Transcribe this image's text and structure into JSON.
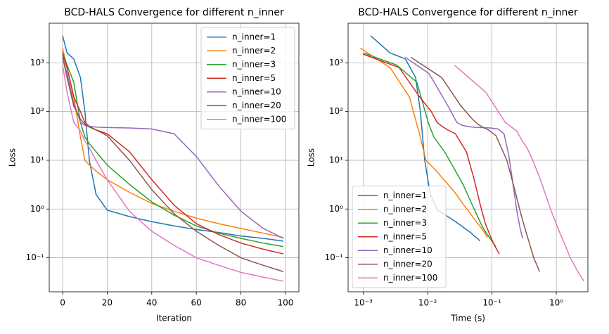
{
  "chart_data": [
    {
      "type": "line",
      "title": "BCD-HALS Convergence for different n_inner",
      "xlabel": "Iteration",
      "ylabel": "Loss",
      "xscale": "linear",
      "yscale": "log",
      "grid": true,
      "legend": "upper right",
      "xlim": [
        -6,
        106
      ],
      "xticks": [
        0,
        20,
        40,
        60,
        80,
        100
      ],
      "ylim": [
        0.02,
        6500
      ],
      "yticks": [
        {
          "value": 0.1,
          "label": "10⁻¹"
        },
        {
          "value": 1,
          "label": "10⁰"
        },
        {
          "value": 10,
          "label": "10¹"
        },
        {
          "value": 100,
          "label": "10²"
        },
        {
          "value": 1000,
          "label": "10³"
        }
      ],
      "x": [
        0,
        2,
        5,
        8,
        10,
        12,
        15,
        20,
        30,
        40,
        50,
        60,
        70,
        80,
        90,
        99
      ],
      "series": [
        {
          "name": "n_inner=1",
          "color": "#1f77b4",
          "values": [
            3600,
            1600,
            1200,
            500,
            100,
            10,
            2,
            0.95,
            0.7,
            0.55,
            0.45,
            0.38,
            0.33,
            0.28,
            0.25,
            0.22
          ]
        },
        {
          "name": "n_inner=2",
          "color": "#ff7f0e",
          "values": [
            2000,
            800,
            200,
            30,
            10,
            8,
            6,
            4,
            2.2,
            1.3,
            0.9,
            0.65,
            0.5,
            0.4,
            0.32,
            0.26
          ]
        },
        {
          "name": "n_inner=3",
          "color": "#2ca02c",
          "values": [
            1600,
            900,
            400,
            60,
            30,
            22,
            15,
            8,
            3.2,
            1.4,
            0.75,
            0.45,
            0.32,
            0.25,
            0.2,
            0.17
          ]
        },
        {
          "name": "n_inner=5",
          "color": "#d62728",
          "values": [
            1500,
            800,
            200,
            100,
            60,
            50,
            42,
            35,
            15,
            4,
            1.2,
            0.5,
            0.3,
            0.2,
            0.15,
            0.12
          ]
        },
        {
          "name": "n_inner=10",
          "color": "#9467bd",
          "values": [
            1300,
            600,
            150,
            60,
            52,
            50,
            48,
            47,
            46,
            44,
            35,
            12,
            3,
            0.9,
            0.4,
            0.25
          ]
        },
        {
          "name": "n_inner=20",
          "color": "#8c564b",
          "values": [
            1300,
            500,
            130,
            70,
            55,
            48,
            42,
            32,
            10,
            2.5,
            0.8,
            0.35,
            0.18,
            0.1,
            0.07,
            0.052
          ]
        },
        {
          "name": "n_inner=100",
          "color": "#e377c2",
          "values": [
            900,
            250,
            60,
            40,
            25,
            18,
            10,
            4,
            0.9,
            0.35,
            0.18,
            0.1,
            0.07,
            0.05,
            0.04,
            0.033
          ]
        }
      ]
    },
    {
      "type": "line",
      "title": "BCD-HALS Convergence for different n_inner",
      "xlabel": "Time (s)",
      "ylabel": "Loss",
      "xscale": "log",
      "yscale": "log",
      "grid": true,
      "legend": "lower left",
      "xlim": [
        0.00058,
        3.1
      ],
      "xticks": [
        {
          "value": 0.001,
          "label": "10⁻³"
        },
        {
          "value": 0.01,
          "label": "10⁻²"
        },
        {
          "value": 0.1,
          "label": "10⁻¹"
        },
        {
          "value": 1,
          "label": "10⁰"
        }
      ],
      "ylim": [
        0.02,
        6500
      ],
      "yticks": [
        {
          "value": 0.1,
          "label": "10⁻¹"
        },
        {
          "value": 1,
          "label": "10⁰"
        },
        {
          "value": 10,
          "label": "10¹"
        },
        {
          "value": 100,
          "label": "10²"
        },
        {
          "value": 1000,
          "label": "10³"
        }
      ],
      "series": [
        {
          "name": "n_inner=1",
          "color": "#1f77b4",
          "x": [
            0.0013,
            0.0026,
            0.0045,
            0.0065,
            0.0077,
            0.009,
            0.011,
            0.0142,
            0.0206,
            0.0271,
            0.0335,
            0.0399,
            0.0464,
            0.0528,
            0.0593,
            0.065
          ],
          "values": [
            3600,
            1600,
            1200,
            500,
            100,
            10,
            2,
            0.95,
            0.7,
            0.55,
            0.45,
            0.38,
            0.33,
            0.28,
            0.25,
            0.22
          ]
        },
        {
          "name": "n_inner=2",
          "color": "#ff7f0e",
          "x": [
            0.0009,
            0.0026,
            0.0052,
            0.0077,
            0.0094,
            0.0111,
            0.0137,
            0.0179,
            0.0264,
            0.0349,
            0.0434,
            0.0519,
            0.0604,
            0.0689,
            0.0774,
            0.085
          ],
          "values": [
            2000,
            800,
            200,
            30,
            10,
            8,
            6,
            4,
            2.2,
            1.3,
            0.9,
            0.65,
            0.5,
            0.4,
            0.32,
            0.26
          ]
        },
        {
          "name": "n_inner=3",
          "color": "#2ca02c",
          "x": [
            0.001,
            0.0033,
            0.0068,
            0.0102,
            0.0125,
            0.0148,
            0.0183,
            0.024,
            0.0355,
            0.047,
            0.0585,
            0.07,
            0.0815,
            0.093,
            0.1045,
            0.115
          ],
          "values": [
            1600,
            900,
            400,
            60,
            30,
            22,
            15,
            8,
            3.2,
            1.4,
            0.75,
            0.45,
            0.32,
            0.25,
            0.2,
            0.17
          ]
        },
        {
          "name": "n_inner=5",
          "color": "#d62728",
          "x": [
            0.001,
            0.0036,
            0.0075,
            0.0114,
            0.014,
            0.0166,
            0.0205,
            0.027,
            0.04,
            0.053,
            0.066,
            0.079,
            0.092,
            0.105,
            0.118,
            0.13
          ],
          "values": [
            1500,
            800,
            200,
            100,
            60,
            50,
            42,
            35,
            15,
            4,
            1.2,
            0.5,
            0.3,
            0.2,
            0.15,
            0.12
          ]
        },
        {
          "name": "n_inner=10",
          "color": "#9467bd",
          "x": [
            0.0045,
            0.0105,
            0.0195,
            0.0284,
            0.0344,
            0.0404,
            0.0494,
            0.0643,
            0.0942,
            0.124,
            0.154,
            0.184,
            0.214,
            0.244,
            0.274,
            0.3
          ],
          "values": [
            1300,
            600,
            150,
            60,
            52,
            50,
            48,
            47,
            46,
            44,
            35,
            12,
            3,
            0.9,
            0.4,
            0.25
          ]
        },
        {
          "name": "n_inner=20",
          "color": "#8c564b",
          "x": [
            0.0055,
            0.0165,
            0.033,
            0.0495,
            0.0605,
            0.0715,
            0.088,
            0.1155,
            0.1705,
            0.2255,
            0.2805,
            0.3355,
            0.3905,
            0.4455,
            0.5005,
            0.55
          ],
          "values": [
            1300,
            500,
            130,
            70,
            55,
            48,
            42,
            32,
            10,
            2.5,
            0.8,
            0.35,
            0.18,
            0.1,
            0.07,
            0.052
          ]
        },
        {
          "name": "n_inner=100",
          "color": "#e377c2",
          "x": [
            0.026,
            0.08,
            0.161,
            0.242,
            0.296,
            0.35,
            0.431,
            0.566,
            0.836,
            1.106,
            1.376,
            1.646,
            1.916,
            2.186,
            2.456,
            2.699
          ],
          "values": [
            900,
            250,
            60,
            40,
            25,
            18,
            10,
            4,
            0.9,
            0.35,
            0.18,
            0.1,
            0.07,
            0.05,
            0.04,
            0.033
          ]
        }
      ]
    }
  ]
}
